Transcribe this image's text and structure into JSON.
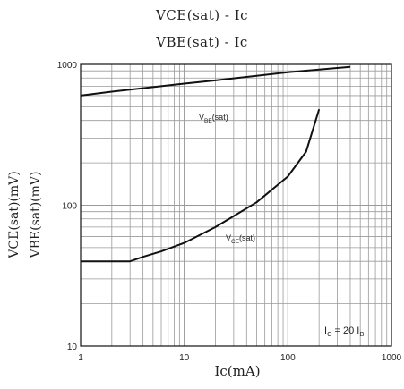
{
  "chart_data": {
    "type": "line",
    "title_lines": [
      "VCE(sat) - Ic",
      "VBE(sat) - Ic"
    ],
    "xlabel": "Ic(mA)",
    "ylabel_lines": [
      "VCE(sat)(mV)",
      "VBE(sat)(mV)"
    ],
    "x_scale": "log",
    "y_scale": "log",
    "xlim": [
      1,
      1000
    ],
    "ylim": [
      10,
      1000
    ],
    "x_ticks": [
      "1",
      "10",
      "100",
      "1000"
    ],
    "y_ticks": [
      "10",
      "100",
      "1000"
    ],
    "grid": true,
    "series": [
      {
        "name": "VBE(sat)",
        "x": [
          1,
          2,
          5,
          10,
          20,
          50,
          100,
          200,
          400
        ],
        "y": [
          600,
          640,
          690,
          730,
          770,
          830,
          880,
          920,
          960
        ]
      },
      {
        "name": "VCE(sat)",
        "x": [
          1,
          2,
          3,
          4,
          6,
          10,
          20,
          50,
          100,
          150,
          200
        ],
        "y": [
          40,
          40,
          40,
          43,
          47,
          54,
          70,
          105,
          160,
          240,
          480
        ]
      }
    ],
    "annotations": [
      "VBE(sat)",
      "VCE(sat)",
      "IC = 20 IB"
    ],
    "line_color": "#111111",
    "grid_color": "#9a9a9a"
  }
}
